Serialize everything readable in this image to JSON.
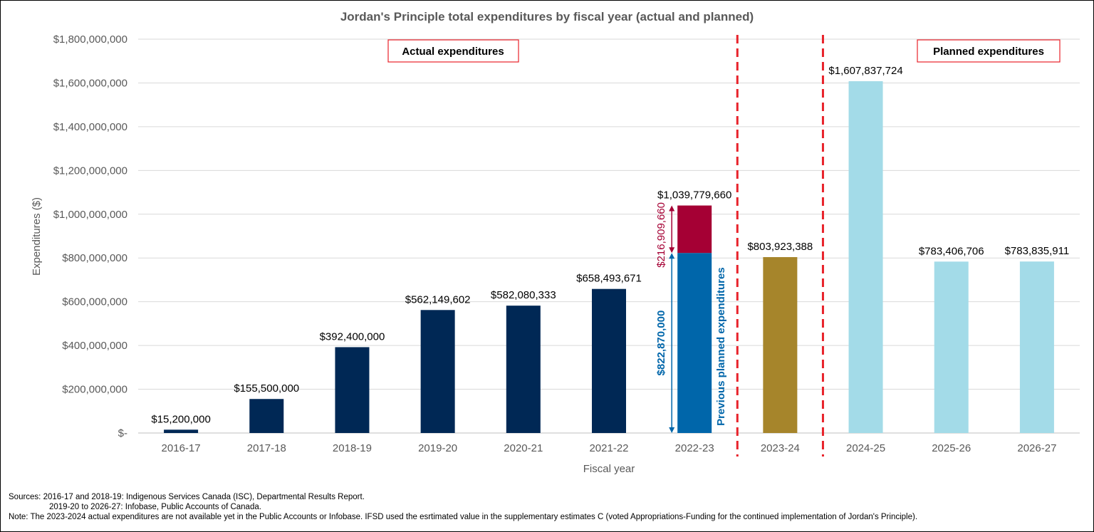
{
  "chart_data": {
    "type": "bar",
    "title": "Jordan's Principle total expenditures by fiscal year (actual and planned)",
    "xlabel": "Fiscal year",
    "ylabel": "Expenditures ($)",
    "ylim": [
      0,
      1800000000
    ],
    "yticks": [
      {
        "value": 0,
        "label": "$-"
      },
      {
        "value": 200000000,
        "label": "$200,000,000"
      },
      {
        "value": 400000000,
        "label": "$400,000,000"
      },
      {
        "value": 600000000,
        "label": "$600,000,000"
      },
      {
        "value": 800000000,
        "label": "$800,000,000"
      },
      {
        "value": 1000000000,
        "label": "$1,000,000,000"
      },
      {
        "value": 1200000000,
        "label": "$1,200,000,000"
      },
      {
        "value": 1400000000,
        "label": "$1,400,000,000"
      },
      {
        "value": 1600000000,
        "label": "$1,600,000,000"
      },
      {
        "value": 1800000000,
        "label": "$1,800,000,000"
      }
    ],
    "grid": true,
    "categories": [
      "2016-17",
      "2017-18",
      "2018-19",
      "2019-20",
      "2020-21",
      "2021-22",
      "2022-23",
      "2023-24",
      "2024-25",
      "2025-26",
      "2026-27"
    ],
    "bars": [
      {
        "category": "2016-17",
        "value": 15200000,
        "label": "$15,200,000",
        "color": "#002855"
      },
      {
        "category": "2017-18",
        "value": 155500000,
        "label": "$155,500,000",
        "color": "#002855"
      },
      {
        "category": "2018-19",
        "value": 392400000,
        "label": "$392,400,000",
        "color": "#002855"
      },
      {
        "category": "2019-20",
        "value": 562149602,
        "label": "$562,149,602",
        "color": "#002855"
      },
      {
        "category": "2020-21",
        "value": 582080333,
        "label": "$582,080,333",
        "color": "#002855"
      },
      {
        "category": "2021-22",
        "value": 658493671,
        "label": "$658,493,671",
        "color": "#002855"
      },
      {
        "category": "2022-23",
        "value": 1039779660,
        "label": "$1,039,779,660",
        "color": "#a50034",
        "segments": [
          {
            "value": 822870000,
            "label": "$822,870,000",
            "color": "#0066aa"
          },
          {
            "value": 216909660,
            "label": "$216,909,660",
            "color": "#a50034"
          }
        ],
        "annotation": "Previous planned expenditures"
      },
      {
        "category": "2023-24",
        "value": 803923388,
        "label": "$803,923,388",
        "color": "#a6852b"
      },
      {
        "category": "2024-25",
        "value": 1607837724,
        "label": "$1,607,837,724",
        "color": "#a3dbe8"
      },
      {
        "category": "2025-26",
        "value": 783406706,
        "label": "$783,406,706",
        "color": "#a3dbe8"
      },
      {
        "category": "2026-27",
        "value": 783835911,
        "label": "$783,835,911",
        "color": "#a3dbe8"
      }
    ],
    "annotations": {
      "actual_box": "Actual expenditures",
      "planned_box": "Planned expenditures"
    },
    "colors": {
      "divider": "#e8222a",
      "box_border": "#e8222a",
      "seg_blue_text": "#0066aa",
      "seg_red_text": "#a50034",
      "gridline": "#d9d9d9"
    }
  },
  "notes": {
    "sources_line1": "Sources: 2016-17 and 2018-19: Indigenous Services Canada (ISC), Departmental Results Report.",
    "sources_line2": "2019-20 to 2026-27: Infobase, Public Accounts of Canada.",
    "note_line": "Note: The 2023-2024 actual expenditures are not available yet in the Public Accounts or Infobase. IFSD  used the esrtimated value in the supplementary estimates C (voted Appropriations-Funding for the continued implementation of Jordan's Principle)."
  }
}
